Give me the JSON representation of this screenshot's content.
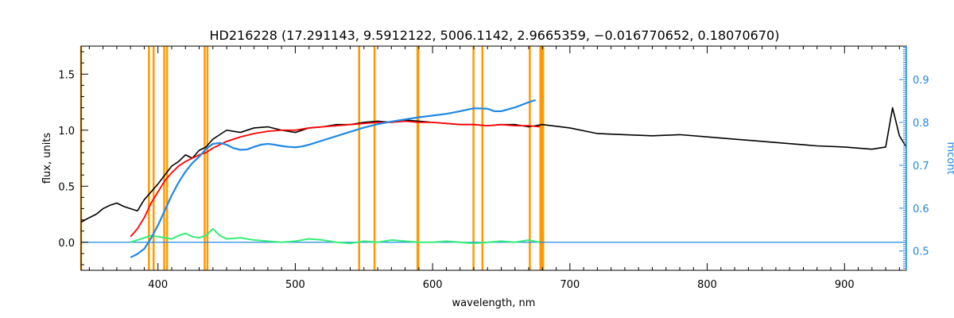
{
  "chart_data": {
    "type": "line",
    "title": "HD216228   (17.291143, 9.5912122, 5006.1142, 2.9665359, −0.016770652, 0.18070670)",
    "xlabel": "wavelength, nm",
    "ylabel": "flux, units",
    "y2label": "mcont",
    "xlim": [
      344,
      945
    ],
    "ylim": [
      -0.25,
      1.75
    ],
    "y2lim": [
      0.455,
      0.978
    ],
    "xticks": [
      400,
      500,
      600,
      700,
      800,
      900
    ],
    "yticks": [
      0.0,
      0.5,
      1.0,
      1.5
    ],
    "y2ticks": [
      0.5,
      0.6,
      0.7,
      0.8,
      0.9
    ],
    "xtick_labels": [
      "400",
      "500",
      "600",
      "700",
      "800",
      "900"
    ],
    "ytick_labels": [
      "0.0",
      "0.5",
      "1.0",
      "1.5"
    ],
    "y2tick_labels": [
      "0.5",
      "0.6",
      "0.7",
      "0.8",
      "0.9"
    ],
    "grid": false,
    "colors": {
      "observed": "#000000",
      "model": "#ff0000",
      "continuum": "#1e88e5",
      "residual": "#33ee77",
      "mask": "#ff9900",
      "mask_highlight": "#ffee00",
      "right_axis": "#1e88e5"
    },
    "mask_lines": [
      344,
      393.4,
      396.8,
      404.5,
      406.6,
      434.0,
      436.0,
      546.5,
      557.7,
      589.0,
      589.6,
      629.8,
      636.3,
      670.8,
      678.5,
      679.5,
      680.5
    ],
    "series": [
      {
        "name": "",
        "role": "observed",
        "x": [
          344,
          350,
          355,
          360,
          365,
          370,
          375,
          380,
          385,
          390,
          395,
          400,
          405,
          410,
          415,
          420,
          425,
          430,
          435,
          440,
          445,
          450,
          460,
          470,
          480,
          490,
          500,
          510,
          520,
          530,
          540,
          550,
          560,
          570,
          580,
          590,
          600,
          610,
          620,
          630,
          640,
          650,
          660,
          670,
          680,
          700,
          720,
          740,
          760,
          780,
          800,
          820,
          840,
          860,
          880,
          900,
          920,
          930,
          935,
          940,
          945
        ],
        "y": [
          0.18,
          0.22,
          0.25,
          0.3,
          0.33,
          0.35,
          0.32,
          0.3,
          0.28,
          0.38,
          0.45,
          0.52,
          0.6,
          0.68,
          0.72,
          0.78,
          0.75,
          0.82,
          0.85,
          0.92,
          0.96,
          1.0,
          0.98,
          1.02,
          1.03,
          1.0,
          0.98,
          1.02,
          1.03,
          1.05,
          1.05,
          1.07,
          1.08,
          1.07,
          1.09,
          1.08,
          1.07,
          1.06,
          1.05,
          1.05,
          1.04,
          1.05,
          1.05,
          1.03,
          1.05,
          1.02,
          0.97,
          0.96,
          0.95,
          0.96,
          0.94,
          0.92,
          0.9,
          0.88,
          0.86,
          0.85,
          0.83,
          0.85,
          1.2,
          0.95,
          0.85
        ]
      },
      {
        "name": "",
        "role": "model",
        "x": [
          380,
          385,
          390,
          395,
          400,
          405,
          410,
          415,
          420,
          425,
          430,
          435,
          440,
          450,
          460,
          470,
          480,
          490,
          500,
          510,
          520,
          530,
          540,
          550,
          560,
          570,
          580,
          590,
          600,
          610,
          620,
          630,
          640,
          650,
          660,
          670,
          678
        ],
        "y": [
          0.05,
          0.12,
          0.22,
          0.35,
          0.45,
          0.55,
          0.62,
          0.68,
          0.72,
          0.75,
          0.78,
          0.8,
          0.84,
          0.9,
          0.94,
          0.97,
          0.99,
          1.0,
          1.0,
          1.02,
          1.03,
          1.04,
          1.05,
          1.06,
          1.07,
          1.07,
          1.08,
          1.07,
          1.07,
          1.06,
          1.05,
          1.05,
          1.04,
          1.05,
          1.04,
          1.04,
          1.03
        ]
      },
      {
        "name": "",
        "role": "continuum",
        "axis": "right",
        "x": [
          380,
          385,
          390,
          395,
          400,
          405,
          410,
          415,
          420,
          425,
          430,
          435,
          440,
          445,
          450,
          455,
          460,
          465,
          470,
          475,
          480,
          485,
          490,
          495,
          500,
          505,
          510,
          520,
          530,
          540,
          550,
          560,
          570,
          580,
          590,
          600,
          610,
          620,
          630,
          640,
          645,
          650,
          660,
          670,
          675
        ],
        "y": [
          0.485,
          0.493,
          0.505,
          0.53,
          0.56,
          0.595,
          0.63,
          0.66,
          0.685,
          0.705,
          0.72,
          0.738,
          0.75,
          0.752,
          0.748,
          0.74,
          0.736,
          0.737,
          0.743,
          0.748,
          0.75,
          0.748,
          0.745,
          0.743,
          0.742,
          0.744,
          0.748,
          0.758,
          0.768,
          0.778,
          0.788,
          0.796,
          0.802,
          0.807,
          0.812,
          0.816,
          0.82,
          0.826,
          0.833,
          0.832,
          0.826,
          0.826,
          0.835,
          0.847,
          0.852
        ]
      },
      {
        "name": "",
        "role": "residual",
        "x": [
          380,
          385,
          390,
          395,
          400,
          405,
          410,
          415,
          420,
          425,
          430,
          435,
          440,
          445,
          450,
          460,
          470,
          480,
          490,
          500,
          510,
          520,
          530,
          540,
          550,
          560,
          570,
          580,
          590,
          600,
          610,
          620,
          630,
          640,
          650,
          660,
          670,
          678
        ],
        "y": [
          0.0,
          0.02,
          0.04,
          0.06,
          0.05,
          0.04,
          0.03,
          0.06,
          0.08,
          0.05,
          0.04,
          0.06,
          0.12,
          0.06,
          0.03,
          0.04,
          0.02,
          0.01,
          0.0,
          0.01,
          0.03,
          0.02,
          0.0,
          -0.01,
          0.01,
          0.0,
          0.02,
          0.01,
          0.0,
          0.0,
          0.01,
          0.0,
          -0.01,
          0.0,
          0.01,
          0.0,
          0.02,
          0.0
        ]
      },
      {
        "name": "",
        "role": "zero-line",
        "x": [
          344,
          945
        ],
        "y": [
          0.0,
          0.0
        ]
      }
    ]
  }
}
